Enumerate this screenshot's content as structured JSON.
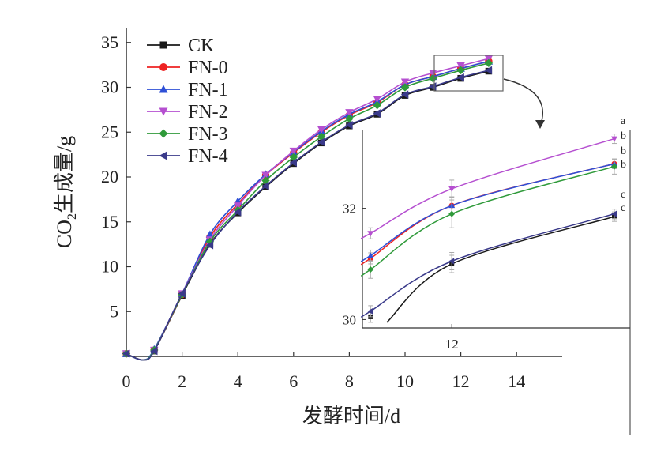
{
  "chart_data": {
    "type": "line",
    "xlabel": "发酵时间/d",
    "ylabel_main": "CO",
    "ylabel_sub": "2",
    "ylabel_rest": "生成量/g",
    "xlim": [
      0,
      15
    ],
    "ylim": [
      0,
      37
    ],
    "x_ticks": [
      0,
      2,
      4,
      6,
      8,
      10,
      12,
      14
    ],
    "y_ticks": [
      5,
      10,
      15,
      20,
      25,
      30,
      35
    ],
    "x": [
      0,
      1,
      2,
      3,
      4,
      5,
      6,
      7,
      8,
      9,
      10,
      11,
      12,
      13
    ],
    "series": [
      {
        "name": "CK",
        "color": "#1a1a1a",
        "marker": "square",
        "values": [
          0.3,
          0.6,
          6.8,
          12.5,
          16.0,
          18.9,
          21.5,
          23.8,
          25.7,
          27.0,
          29.1,
          30.0,
          31.0,
          31.8
        ]
      },
      {
        "name": "FN-0",
        "color": "#ee2222",
        "marker": "circle",
        "values": [
          0.3,
          0.7,
          6.9,
          13.3,
          17.0,
          20.2,
          22.7,
          25.0,
          26.9,
          28.3,
          30.3,
          31.2,
          32.1,
          32.9
        ]
      },
      {
        "name": "FN-1",
        "color": "#2e4fd6",
        "marker": "triangle-up",
        "values": [
          0.3,
          0.8,
          7.0,
          13.6,
          17.3,
          20.3,
          22.8,
          25.1,
          27.0,
          28.4,
          30.3,
          31.2,
          32.1,
          32.9
        ]
      },
      {
        "name": "FN-2",
        "color": "#b54fd0",
        "marker": "triangle-down",
        "values": [
          0.3,
          0.7,
          7.0,
          13.0,
          16.8,
          20.2,
          22.9,
          25.3,
          27.2,
          28.7,
          30.6,
          31.6,
          32.4,
          33.2
        ]
      },
      {
        "name": "FN-3",
        "color": "#2f9a3a",
        "marker": "diamond",
        "values": [
          0.3,
          0.7,
          6.9,
          12.8,
          16.3,
          19.6,
          22.2,
          24.5,
          26.5,
          28.0,
          30.0,
          31.0,
          31.9,
          32.7
        ]
      },
      {
        "name": "FN-4",
        "color": "#3a3a8a",
        "marker": "triangle-left",
        "values": [
          0.3,
          0.6,
          7.0,
          12.4,
          16.1,
          19.0,
          21.6,
          23.9,
          25.8,
          27.1,
          29.2,
          30.1,
          31.1,
          31.9
        ]
      }
    ],
    "inset": {
      "y_ticks": [
        30,
        32
      ],
      "x_ticks": [
        12
      ],
      "significance": [
        {
          "letter": "a",
          "series": "FN-2"
        },
        {
          "letter": "b",
          "series": "FN-0"
        },
        {
          "letter": "b",
          "series": "FN-1"
        },
        {
          "letter": "b",
          "series": "FN-3"
        },
        {
          "letter": "c",
          "series": "FN-4"
        },
        {
          "letter": "c",
          "series": "CK"
        }
      ]
    },
    "legend_position": "top-left"
  }
}
